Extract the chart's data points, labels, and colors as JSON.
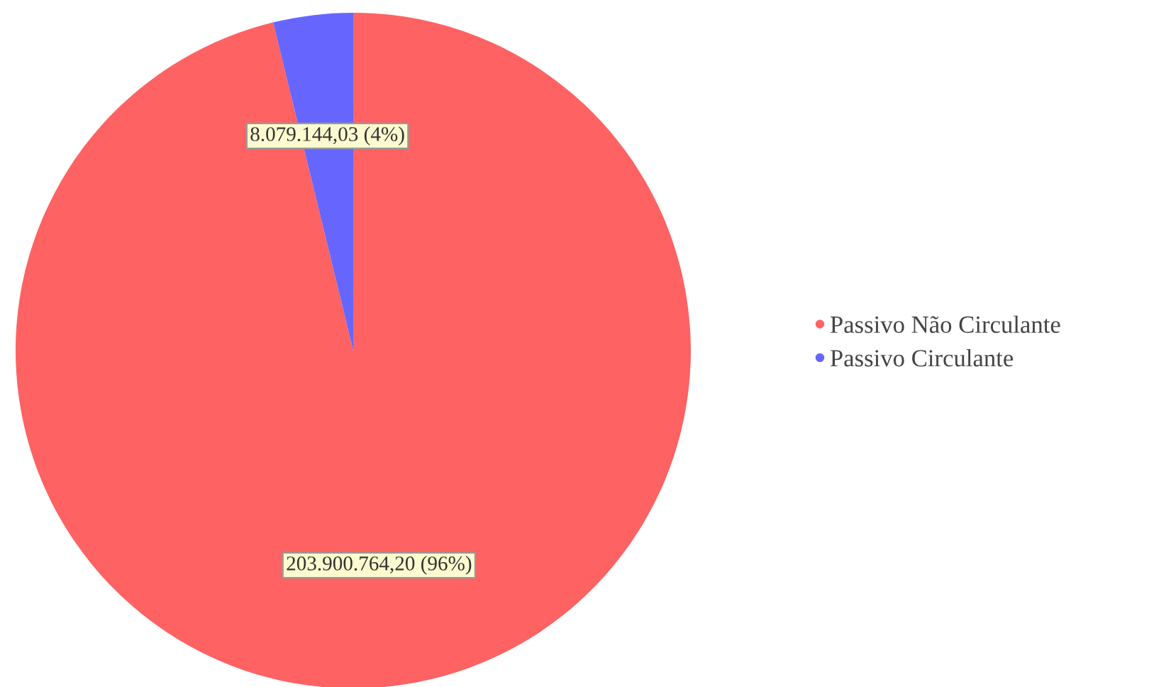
{
  "chart_data": {
    "type": "pie",
    "categories": [
      "Passivo Não Circulante",
      "Passivo Circulante"
    ],
    "values": [
      203900764.2,
      8079144.03
    ],
    "colors": [
      "#ff6262",
      "#6666ff"
    ],
    "value_labels": [
      "203.900.764,20 (96%)",
      "8.079.144,03 (4%)"
    ],
    "legend": "right"
  }
}
